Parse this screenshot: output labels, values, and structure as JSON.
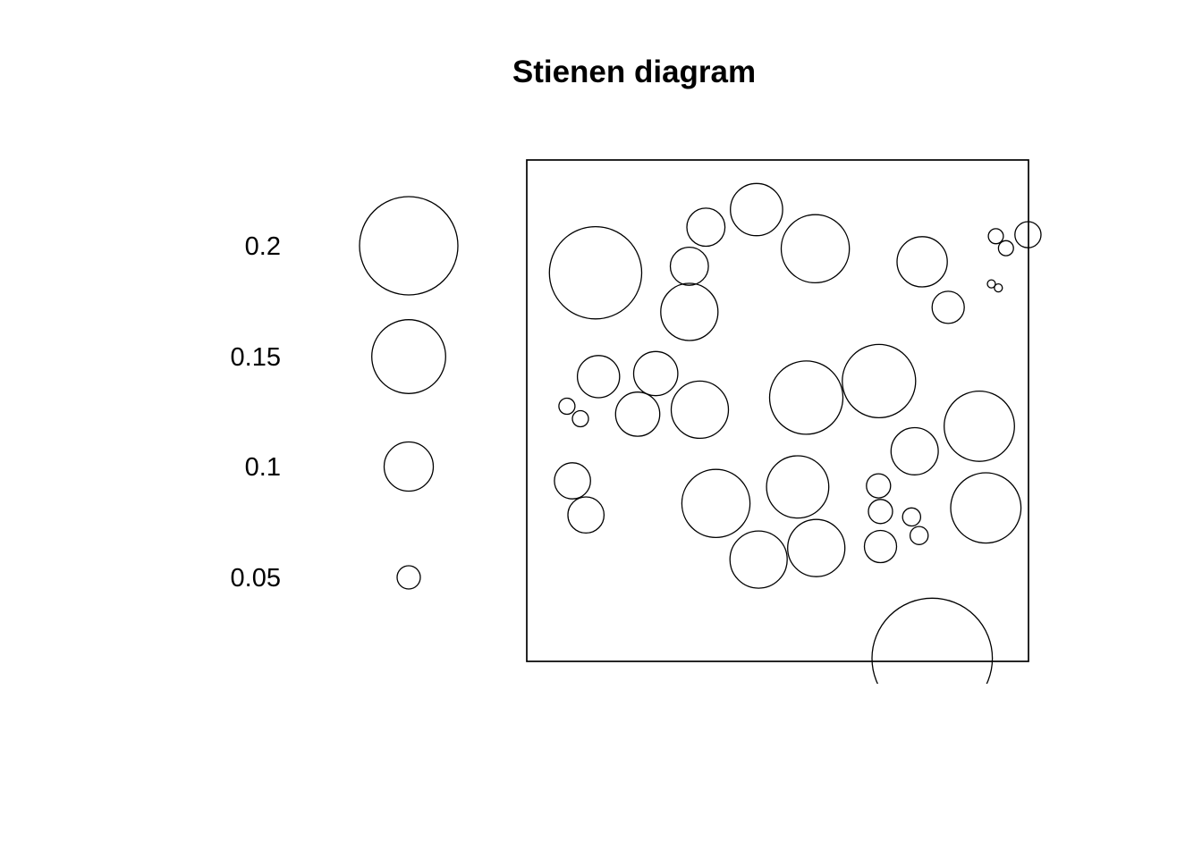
{
  "chart_data": {
    "type": "scatter",
    "subtype": "stienen-diagram",
    "title": "Stienen diagram",
    "xlabel": "",
    "ylabel": "",
    "xlim": [
      0,
      1
    ],
    "ylim": [
      0,
      1
    ],
    "grid": false,
    "legend_position": "left",
    "legend": {
      "entries": [
        {
          "label": "0.2",
          "value": 0.2
        },
        {
          "label": "0.15",
          "value": 0.15
        },
        {
          "label": "0.1",
          "value": 0.1
        },
        {
          "label": "0.05",
          "value": 0.05
        }
      ]
    },
    "points": [
      {
        "x": 0.137,
        "y": 0.775,
        "r": 0.092
      },
      {
        "x": 0.324,
        "y": 0.697,
        "r": 0.057
      },
      {
        "x": 0.324,
        "y": 0.788,
        "r": 0.038
      },
      {
        "x": 0.357,
        "y": 0.866,
        "r": 0.038
      },
      {
        "x": 0.458,
        "y": 0.901,
        "r": 0.052
      },
      {
        "x": 0.575,
        "y": 0.823,
        "r": 0.068
      },
      {
        "x": 0.788,
        "y": 0.797,
        "r": 0.05
      },
      {
        "x": 0.84,
        "y": 0.706,
        "r": 0.032
      },
      {
        "x": 0.935,
        "y": 0.848,
        "r": 0.015
      },
      {
        "x": 0.955,
        "y": 0.824,
        "r": 0.015
      },
      {
        "x": 0.999,
        "y": 0.851,
        "r": 0.026
      },
      {
        "x": 0.926,
        "y": 0.753,
        "r": 0.008
      },
      {
        "x": 0.94,
        "y": 0.745,
        "r": 0.008
      },
      {
        "x": 0.143,
        "y": 0.568,
        "r": 0.042
      },
      {
        "x": 0.257,
        "y": 0.574,
        "r": 0.044
      },
      {
        "x": 0.221,
        "y": 0.493,
        "r": 0.044
      },
      {
        "x": 0.345,
        "y": 0.502,
        "r": 0.057
      },
      {
        "x": 0.08,
        "y": 0.509,
        "r": 0.016
      },
      {
        "x": 0.107,
        "y": 0.484,
        "r": 0.016
      },
      {
        "x": 0.557,
        "y": 0.526,
        "r": 0.073
      },
      {
        "x": 0.702,
        "y": 0.559,
        "r": 0.073
      },
      {
        "x": 0.902,
        "y": 0.469,
        "r": 0.07
      },
      {
        "x": 0.773,
        "y": 0.419,
        "r": 0.047
      },
      {
        "x": 0.091,
        "y": 0.36,
        "r": 0.036
      },
      {
        "x": 0.118,
        "y": 0.292,
        "r": 0.036
      },
      {
        "x": 0.377,
        "y": 0.315,
        "r": 0.068
      },
      {
        "x": 0.54,
        "y": 0.348,
        "r": 0.062
      },
      {
        "x": 0.462,
        "y": 0.203,
        "r": 0.057
      },
      {
        "x": 0.577,
        "y": 0.226,
        "r": 0.057
      },
      {
        "x": 0.701,
        "y": 0.35,
        "r": 0.024
      },
      {
        "x": 0.705,
        "y": 0.299,
        "r": 0.024
      },
      {
        "x": 0.767,
        "y": 0.288,
        "r": 0.018
      },
      {
        "x": 0.782,
        "y": 0.251,
        "r": 0.018
      },
      {
        "x": 0.705,
        "y": 0.229,
        "r": 0.032
      },
      {
        "x": 0.915,
        "y": 0.306,
        "r": 0.07
      },
      {
        "x": 0.808,
        "y": 0.006,
        "r": 0.12
      }
    ]
  }
}
